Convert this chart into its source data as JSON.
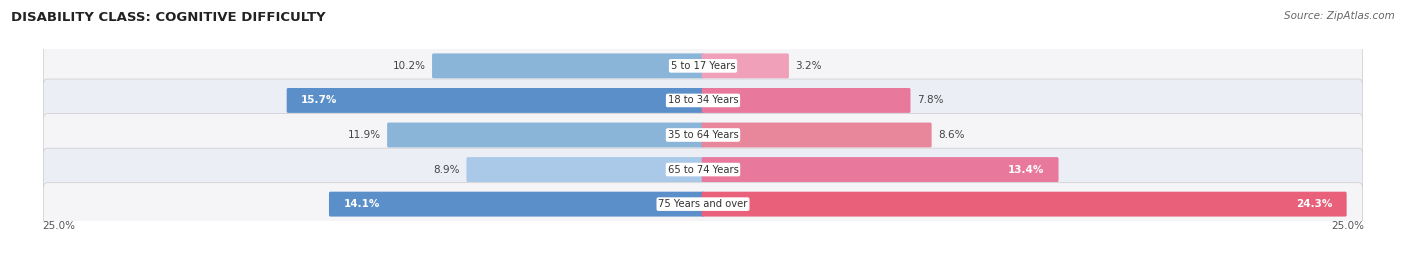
{
  "title": "DISABILITY CLASS: COGNITIVE DIFFICULTY",
  "source": "Source: ZipAtlas.com",
  "categories": [
    "5 to 17 Years",
    "18 to 34 Years",
    "35 to 64 Years",
    "65 to 74 Years",
    "75 Years and over"
  ],
  "male_values": [
    10.2,
    15.7,
    11.9,
    8.9,
    14.1
  ],
  "female_values": [
    3.2,
    7.8,
    8.6,
    13.4,
    24.3
  ],
  "male_colors": [
    "#8ab4d8",
    "#5b8fc9",
    "#8ab4d8",
    "#aac8e8",
    "#5b8fc9"
  ],
  "female_colors": [
    "#f0a0b8",
    "#e8789c",
    "#e8879c",
    "#e8789c",
    "#e8607a"
  ],
  "max_val": 25.0,
  "bg_color": "#ffffff",
  "row_colors": [
    "#f5f5f8",
    "#eceef5"
  ],
  "title_color": "#222222",
  "legend_male_color": "#7baad0",
  "legend_female_color": "#e8789c",
  "figsize": [
    14.06,
    2.7
  ],
  "dpi": 100
}
